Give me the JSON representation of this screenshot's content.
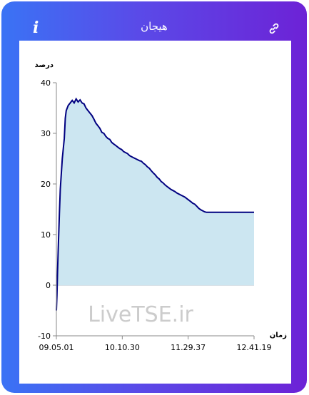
{
  "header": {
    "title": "هیجان",
    "info_icon": "info-icon",
    "link_icon": "link-icon"
  },
  "colors": {
    "gradient_start": "#3a73f5",
    "gradient_end": "#6d22d6",
    "line": "#000080",
    "area_fill": "#cce6f1"
  },
  "watermark": "LiveTSE.ir",
  "chart_data": {
    "type": "area",
    "ylabel": "درصد",
    "xlabel": "زمان",
    "ylim": [
      -10,
      40
    ],
    "yticks": [
      -10,
      0,
      10,
      20,
      30,
      40
    ],
    "xtick_labels": [
      "09.05.01",
      "10.10.30",
      "11.29.37",
      "12.41.19"
    ],
    "grid": false,
    "series": [
      {
        "x": [
          0,
          0.3,
          0.6,
          1.0,
          1.5,
          2.0,
          3.0,
          3.5,
          4.0,
          4.5,
          5.0,
          6.0,
          7.0,
          8.0,
          9.0,
          10.0,
          11.0,
          12.0,
          13.0,
          14.0,
          15.0,
          16.0,
          17.0,
          18.0,
          19.0,
          20.0,
          21.0,
          22.0,
          23.0,
          24.0,
          25.0,
          26.0,
          27.0,
          28.0,
          29.0,
          30.0,
          31.0,
          32.0,
          33.0,
          34.0,
          35.0,
          36.0,
          37.0,
          38.0,
          39.0,
          40.0,
          41.0,
          42.0,
          43.0,
          44.0,
          45.0,
          46.0,
          47.0,
          48.0,
          49.0,
          50.0,
          51.0,
          52.0,
          53.0,
          54.0,
          55.0,
          56.0,
          57.0,
          58.0,
          59.0,
          60.0,
          61.0,
          62.0,
          63.0,
          64.0,
          65.0,
          66.0,
          67.0,
          68.0,
          69.0,
          70.0,
          71.0,
          72.0,
          73.0,
          74.0,
          75.0,
          76.0,
          77.0,
          78.0,
          79.0,
          80.0,
          81.0,
          82.0,
          83.0,
          84.0,
          85.0,
          86.0,
          87.0,
          88.0,
          89.0,
          90.0,
          91.0,
          92.0,
          93.0,
          94.0,
          95.0,
          96.0,
          97.0,
          98.0,
          99.0,
          100.0
        ],
        "y": [
          -5.0,
          -2.0,
          3.0,
          8.0,
          14.0,
          19.0,
          25.0,
          27.0,
          29.0,
          33.0,
          34.5,
          35.5,
          36.0,
          36.5,
          36.0,
          36.8,
          36.2,
          36.6,
          36.0,
          35.8,
          35.0,
          34.5,
          34.0,
          33.5,
          32.8,
          32.0,
          31.5,
          31.0,
          30.2,
          30.0,
          29.4,
          29.0,
          28.8,
          28.2,
          27.9,
          27.6,
          27.3,
          27.0,
          26.8,
          26.4,
          26.2,
          26.0,
          25.6,
          25.4,
          25.2,
          25.0,
          24.8,
          24.6,
          24.5,
          24.1,
          23.8,
          23.4,
          23.1,
          22.6,
          22.2,
          21.8,
          21.3,
          21.0,
          20.5,
          20.2,
          19.8,
          19.5,
          19.2,
          18.9,
          18.7,
          18.5,
          18.2,
          18.0,
          17.8,
          17.6,
          17.4,
          17.1,
          16.8,
          16.5,
          16.2,
          16.0,
          15.6,
          15.2,
          14.9,
          14.7,
          14.5,
          14.4,
          14.4,
          14.4,
          14.4,
          14.4,
          14.4,
          14.4,
          14.4,
          14.4,
          14.4,
          14.4,
          14.4,
          14.4,
          14.4,
          14.4,
          14.4,
          14.4,
          14.4,
          14.4,
          14.4,
          14.4,
          14.4,
          14.4,
          14.4,
          14.4
        ]
      }
    ]
  }
}
